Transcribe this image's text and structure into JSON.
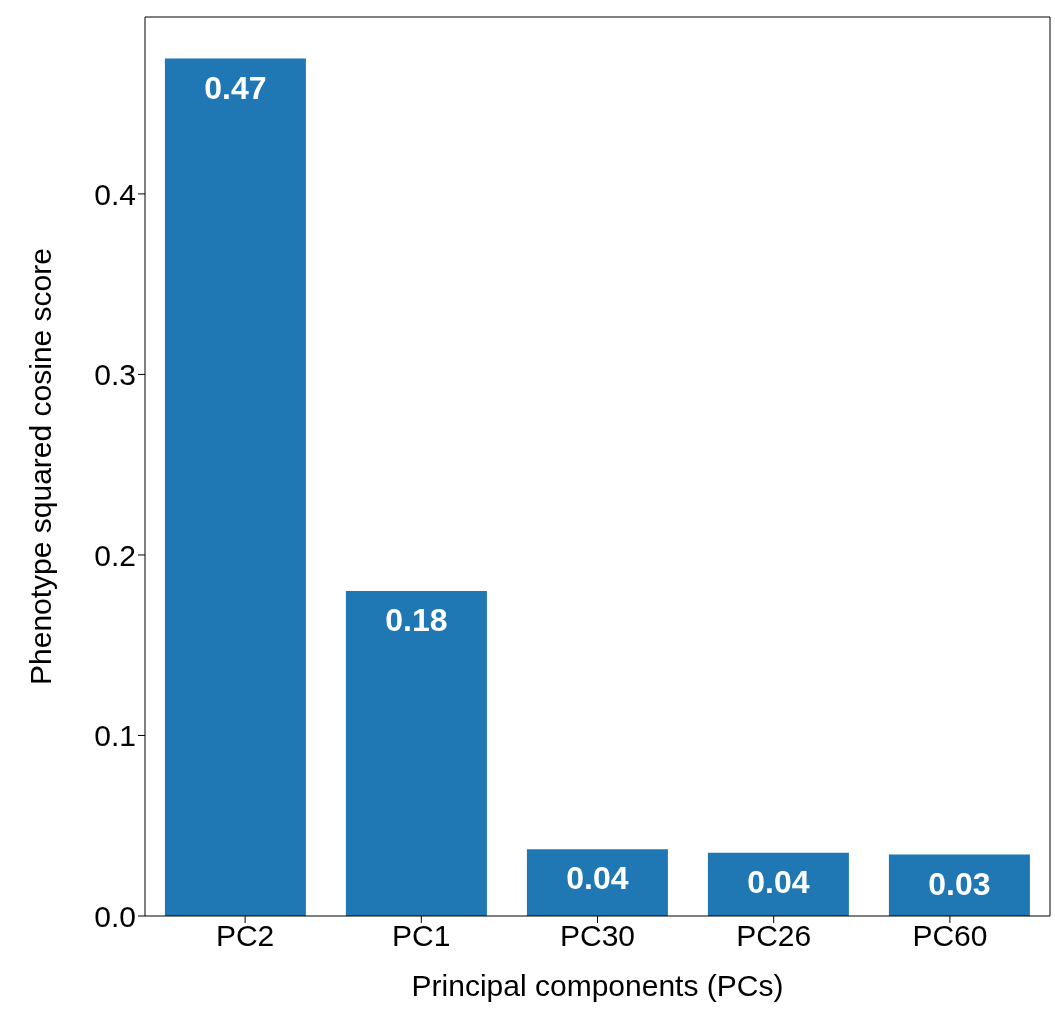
{
  "chart_data": {
    "type": "bar",
    "xlabel": "Principal components (PCs)",
    "ylabel": "Phenotype squared cosine score",
    "categories": [
      "PC2",
      "PC1",
      "PC30",
      "PC26",
      "PC60"
    ],
    "values": [
      0.475,
      0.18,
      0.037,
      0.035,
      0.034
    ],
    "value_labels": [
      "0.47",
      "0.18",
      "0.04",
      "0.04",
      "0.03"
    ],
    "color": "#1f77b4",
    "ylim": [
      0,
      0.498
    ],
    "yticks": [
      {
        "value": 0,
        "label": "0.0"
      },
      {
        "value": 0.1,
        "label": "0.1"
      },
      {
        "value": 0.2,
        "label": "0.2"
      },
      {
        "value": 0.3,
        "label": "0.3"
      },
      {
        "value": 0.4,
        "label": "0.4"
      }
    ]
  }
}
